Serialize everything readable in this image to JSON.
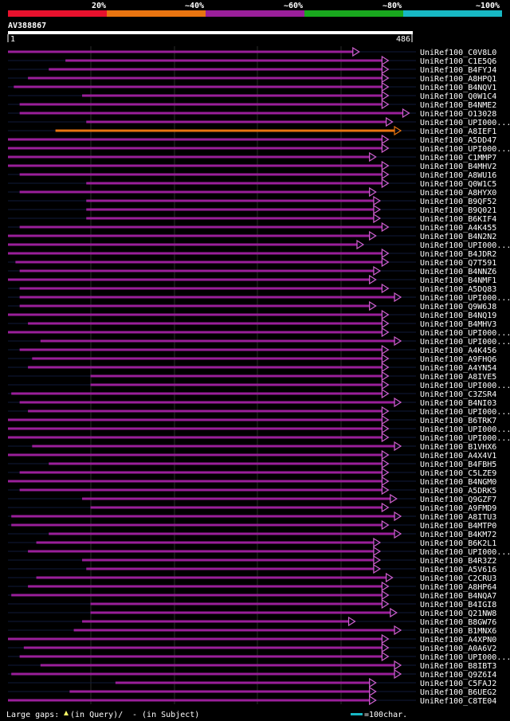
{
  "identity_scale": {
    "labels": [
      "20%",
      "~40%",
      "~60%",
      "~80%",
      "~100%"
    ],
    "colors": [
      "#e8112d",
      "#e87410",
      "#9a1f9a",
      "#19a81e",
      "#17b8c4"
    ]
  },
  "query": {
    "id": "AV388867",
    "start_label": "1",
    "end_label": "486"
  },
  "chart_data": {
    "type": "alignment-overview",
    "query_length": 486,
    "hits": [
      {
        "label": "UniRef100_C0V8L0",
        "start": 1,
        "end": 415,
        "color": "#9a1f9a",
        "arrow": true
      },
      {
        "label": "UniRef100_C1E5Q6",
        "start": 70,
        "end": 450,
        "color": "#9a1f9a",
        "arrow": true
      },
      {
        "label": "UniRef100_B4FYJ4",
        "start": 50,
        "end": 450,
        "color": "#9a1f9a",
        "arrow": true
      },
      {
        "label": "UniRef100_A8HPQ1",
        "start": 25,
        "end": 450,
        "color": "#9a1f9a",
        "arrow": true
      },
      {
        "label": "UniRef100_B4NQV1",
        "start": 8,
        "end": 450,
        "color": "#9a1f9a",
        "arrow": true
      },
      {
        "label": "UniRef100_Q0W1C4",
        "start": 90,
        "end": 450,
        "color": "#9a1f9a",
        "arrow": true
      },
      {
        "label": "UniRef100_B4NME2",
        "start": 15,
        "end": 450,
        "color": "#9a1f9a",
        "arrow": true
      },
      {
        "label": "UniRef100_O13028",
        "start": 15,
        "end": 475,
        "color": "#9a1f9a",
        "arrow": true
      },
      {
        "label": "UniRef100_UPI000...",
        "start": 95,
        "end": 455,
        "color": "#9a1f9a",
        "arrow": true
      },
      {
        "label": "UniRef100_A8IEF1",
        "start": 58,
        "end": 465,
        "color": "#e87410",
        "arrow": true
      },
      {
        "label": "UniRef100_A5DD47",
        "start": 1,
        "end": 450,
        "color": "#9a1f9a",
        "arrow": true
      },
      {
        "label": "UniRef100_UPI000...",
        "start": 1,
        "end": 450,
        "color": "#9a1f9a",
        "arrow": true
      },
      {
        "label": "UniRef100_C1MMP7",
        "start": 1,
        "end": 435,
        "color": "#9a1f9a",
        "arrow": true
      },
      {
        "label": "UniRef100_B4MHV2",
        "start": 1,
        "end": 450,
        "color": "#9a1f9a",
        "arrow": true
      },
      {
        "label": "UniRef100_A8WU16",
        "start": 15,
        "end": 450,
        "color": "#9a1f9a",
        "arrow": true
      },
      {
        "label": "UniRef100_Q0W1C5",
        "start": 95,
        "end": 450,
        "color": "#9a1f9a",
        "arrow": true
      },
      {
        "label": "UniRef100_A8HYX0",
        "start": 15,
        "end": 435,
        "color": "#9a1f9a",
        "arrow": true
      },
      {
        "label": "UniRef100_B9QF52",
        "start": 95,
        "end": 440,
        "color": "#9a1f9a",
        "arrow": true
      },
      {
        "label": "UniRef100_B9Q021",
        "start": 95,
        "end": 440,
        "color": "#9a1f9a",
        "arrow": true
      },
      {
        "label": "UniRef100_B6KIF4",
        "start": 95,
        "end": 440,
        "color": "#9a1f9a",
        "arrow": true
      },
      {
        "label": "UniRef100_A4K455",
        "start": 15,
        "end": 450,
        "color": "#9a1f9a",
        "arrow": true
      },
      {
        "label": "UniRef100_B4N2N2",
        "start": 1,
        "end": 435,
        "color": "#9a1f9a",
        "arrow": true
      },
      {
        "label": "UniRef100_UPI000...",
        "start": 1,
        "end": 420,
        "color": "#9a1f9a",
        "arrow": true
      },
      {
        "label": "UniRef100_B4JDR2",
        "start": 1,
        "end": 450,
        "color": "#9a1f9a",
        "arrow": true
      },
      {
        "label": "UniRef100_Q7T591",
        "start": 10,
        "end": 450,
        "color": "#9a1f9a",
        "arrow": true
      },
      {
        "label": "UniRef100_B4NNZ6",
        "start": 15,
        "end": 440,
        "color": "#9a1f9a",
        "arrow": true
      },
      {
        "label": "UniRef100_B4NMF1",
        "start": 1,
        "end": 435,
        "color": "#9a1f9a",
        "arrow": true
      },
      {
        "label": "UniRef100_A5DQ83",
        "start": 15,
        "end": 450,
        "color": "#9a1f9a",
        "arrow": true
      },
      {
        "label": "UniRef100_UPI000...",
        "start": 15,
        "end": 465,
        "color": "#9a1f9a",
        "arrow": true
      },
      {
        "label": "UniRef100_Q9W6J8",
        "start": 15,
        "end": 435,
        "color": "#9a1f9a",
        "arrow": true
      },
      {
        "label": "UniRef100_B4NQ19",
        "start": 1,
        "end": 450,
        "color": "#9a1f9a",
        "arrow": true
      },
      {
        "label": "UniRef100_B4MHV3",
        "start": 25,
        "end": 450,
        "color": "#9a1f9a",
        "arrow": true
      },
      {
        "label": "UniRef100_UPI000...",
        "start": 1,
        "end": 450,
        "color": "#9a1f9a",
        "arrow": true
      },
      {
        "label": "UniRef100_UPI000...",
        "start": 40,
        "end": 465,
        "color": "#9a1f9a",
        "arrow": true
      },
      {
        "label": "UniRef100_A4K456",
        "start": 15,
        "end": 450,
        "color": "#9a1f9a",
        "arrow": true
      },
      {
        "label": "UniRef100_A9FHQ6",
        "start": 30,
        "end": 450,
        "color": "#9a1f9a",
        "arrow": true
      },
      {
        "label": "UniRef100_A4YN54",
        "start": 25,
        "end": 450,
        "color": "#9a1f9a",
        "arrow": true
      },
      {
        "label": "UniRef100_A8IVE5",
        "start": 100,
        "end": 450,
        "color": "#9a1f9a",
        "arrow": true
      },
      {
        "label": "UniRef100_UPI000...",
        "start": 100,
        "end": 450,
        "color": "#9a1f9a",
        "arrow": true
      },
      {
        "label": "UniRef100_C3ZSR4",
        "start": 5,
        "end": 450,
        "color": "#9a1f9a",
        "arrow": true
      },
      {
        "label": "UniRef100_B4NI03",
        "start": 15,
        "end": 465,
        "color": "#9a1f9a",
        "arrow": true
      },
      {
        "label": "UniRef100_UPI000...",
        "start": 25,
        "end": 450,
        "color": "#9a1f9a",
        "arrow": true
      },
      {
        "label": "UniRef100_B6TRK7",
        "start": 1,
        "end": 450,
        "color": "#9a1f9a",
        "arrow": true
      },
      {
        "label": "UniRef100_UPI000...",
        "start": 1,
        "end": 450,
        "color": "#9a1f9a",
        "arrow": true
      },
      {
        "label": "UniRef100_UPI000...",
        "start": 1,
        "end": 450,
        "color": "#9a1f9a",
        "arrow": true
      },
      {
        "label": "UniRef100_B1VHX6",
        "start": 30,
        "end": 465,
        "color": "#9a1f9a",
        "arrow": true
      },
      {
        "label": "UniRef100_A4X4V1",
        "start": 1,
        "end": 450,
        "color": "#9a1f9a",
        "arrow": true
      },
      {
        "label": "UniRef100_B4FBH5",
        "start": 50,
        "end": 450,
        "color": "#9a1f9a",
        "arrow": true
      },
      {
        "label": "UniRef100_C5LZE9",
        "start": 15,
        "end": 450,
        "color": "#9a1f9a",
        "arrow": true
      },
      {
        "label": "UniRef100_B4NGM0",
        "start": 1,
        "end": 450,
        "color": "#9a1f9a",
        "arrow": true
      },
      {
        "label": "UniRef100_A5DRK5",
        "start": 15,
        "end": 450,
        "color": "#9a1f9a",
        "arrow": true
      },
      {
        "label": "UniRef100_Q9GZF7",
        "start": 90,
        "end": 460,
        "color": "#9a1f9a",
        "arrow": true
      },
      {
        "label": "UniRef100_A9FMD9",
        "start": 100,
        "end": 450,
        "color": "#9a1f9a",
        "arrow": true
      },
      {
        "label": "UniRef100_A8ITU3",
        "start": 5,
        "end": 465,
        "color": "#9a1f9a",
        "arrow": true
      },
      {
        "label": "UniRef100_B4MTP0",
        "start": 5,
        "end": 450,
        "color": "#9a1f9a",
        "arrow": true
      },
      {
        "label": "UniRef100_B4KM72",
        "start": 50,
        "end": 465,
        "color": "#9a1f9a",
        "arrow": true
      },
      {
        "label": "UniRef100_B6K2L1",
        "start": 35,
        "end": 440,
        "color": "#9a1f9a",
        "arrow": true
      },
      {
        "label": "UniRef100_UPI000...",
        "start": 25,
        "end": 440,
        "color": "#9a1f9a",
        "arrow": true
      },
      {
        "label": "UniRef100_B4R3Z2",
        "start": 90,
        "end": 440,
        "color": "#9a1f9a",
        "arrow": true
      },
      {
        "label": "UniRef100_A5V616",
        "start": 95,
        "end": 440,
        "color": "#9a1f9a",
        "arrow": true
      },
      {
        "label": "UniRef100_C2CRU3",
        "start": 35,
        "end": 455,
        "color": "#9a1f9a",
        "arrow": true
      },
      {
        "label": "UniRef100_A8HP64",
        "start": 25,
        "end": 450,
        "color": "#9a1f9a",
        "arrow": true
      },
      {
        "label": "UniRef100_B4NQA7",
        "start": 5,
        "end": 450,
        "color": "#9a1f9a",
        "arrow": true
      },
      {
        "label": "UniRef100_B4IGI8",
        "start": 100,
        "end": 450,
        "color": "#9a1f9a",
        "arrow": true
      },
      {
        "label": "UniRef100_Q21NW8",
        "start": 100,
        "end": 460,
        "color": "#9a1f9a",
        "arrow": true
      },
      {
        "label": "UniRef100_B8GW76",
        "start": 90,
        "end": 410,
        "color": "#9a1f9a",
        "arrow": true
      },
      {
        "label": "UniRef100_B1MNX6",
        "start": 80,
        "end": 465,
        "color": "#9a1f9a",
        "arrow": true
      },
      {
        "label": "UniRef100_A4XPN0",
        "start": 1,
        "end": 450,
        "color": "#9a1f9a",
        "arrow": true
      },
      {
        "label": "UniRef100_A0A6V2",
        "start": 20,
        "end": 450,
        "color": "#9a1f9a",
        "arrow": true
      },
      {
        "label": "UniRef100_UPI000...",
        "start": 15,
        "end": 450,
        "color": "#9a1f9a",
        "arrow": true
      },
      {
        "label": "UniRef100_B8IBT3",
        "start": 40,
        "end": 465,
        "color": "#9a1f9a",
        "arrow": true
      },
      {
        "label": "UniRef100_Q9Z6I4",
        "start": 5,
        "end": 465,
        "color": "#9a1f9a",
        "arrow": true
      },
      {
        "label": "UniRef100_C5FAJ2",
        "start": 130,
        "end": 435,
        "color": "#9a1f9a",
        "arrow": true
      },
      {
        "label": "UniRef100_B6UEG2",
        "start": 75,
        "end": 435,
        "color": "#9a1f9a",
        "arrow": true
      },
      {
        "label": "UniRef100_C8TE04",
        "start": 1,
        "end": 435,
        "color": "#9a1f9a",
        "arrow": true
      }
    ]
  },
  "footer": {
    "large_gaps_label": "Large gaps:",
    "query_gap_label": "(in Query)/",
    "subject_gap_label": "- (in Subject)",
    "scale_label": "=100char."
  }
}
